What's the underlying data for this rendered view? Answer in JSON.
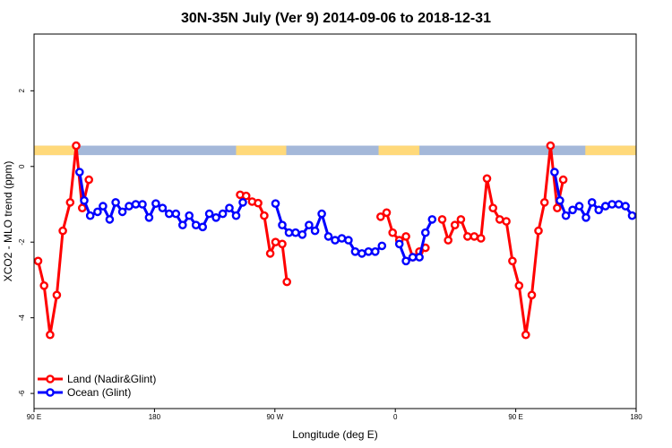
{
  "chart_data": {
    "type": "line",
    "title": "30N-35N July (Ver 9)   2014-09-06 to 2018-12-31",
    "xlabel": "Longitude (deg E)",
    "ylabel": "XCO2 - MLO trend (ppm)",
    "xlim": [
      90,
      540
    ],
    "ylim": [
      -6.4,
      3.5
    ],
    "x_ticks": [
      {
        "value": 90,
        "label": "90 E"
      },
      {
        "value": 180,
        "label": "180"
      },
      {
        "value": 270,
        "label": "90 W"
      },
      {
        "value": 360,
        "label": "0"
      },
      {
        "value": 450,
        "label": "90 E"
      },
      {
        "value": 540,
        "label": "180"
      }
    ],
    "y_ticks": [
      {
        "value": 2,
        "label": "2"
      },
      {
        "value": 0,
        "label": "0"
      },
      {
        "value": -2,
        "label": "-2"
      },
      {
        "value": -4,
        "label": "-4"
      },
      {
        "value": -6,
        "label": "-6"
      }
    ],
    "land_mask_band": {
      "y_range": [
        0.3,
        0.55
      ],
      "ocean_color": "#a4b8d9",
      "land_color": "#ffd97a",
      "land_x_ranges": [
        [
          90,
          122.5
        ],
        [
          241,
          278.5
        ],
        [
          347.5,
          378
        ],
        [
          502,
          540
        ]
      ]
    },
    "legend": {
      "position": "bottom-left"
    },
    "series": [
      {
        "name": "Land (Nadir&Glint)",
        "color": "#ff0000",
        "segments": [
          [
            [
              93,
              -2.5
            ],
            [
              97.5,
              -3.15
            ],
            [
              102,
              -4.45
            ],
            [
              107,
              -3.4
            ],
            [
              111.5,
              -1.7
            ],
            [
              117,
              -0.95
            ],
            [
              121.5,
              0.55
            ],
            [
              126,
              -1.1
            ],
            [
              131,
              -0.35
            ]
          ],
          [
            [
              244,
              -0.75
            ],
            [
              248.5,
              -0.78
            ],
            [
              253,
              -0.93
            ],
            [
              257.5,
              -0.97
            ],
            [
              262,
              -1.3
            ],
            [
              266.5,
              -2.3
            ],
            [
              270.5,
              -2.0
            ],
            [
              275.5,
              -2.05
            ],
            [
              279,
              -3.05
            ]
          ],
          [
            [
              349,
              -1.33
            ],
            [
              353.5,
              -1.22
            ],
            [
              358,
              -1.75
            ],
            [
              363,
              -1.95
            ],
            [
              368,
              -1.85
            ],
            [
              373,
              -2.4
            ],
            [
              378,
              -2.25
            ],
            [
              382.5,
              -2.15
            ]
          ],
          [
            [
              395,
              -1.4
            ],
            [
              399.5,
              -1.95
            ],
            [
              404.5,
              -1.55
            ],
            [
              409,
              -1.4
            ],
            [
              414,
              -1.85
            ],
            [
              419,
              -1.85
            ],
            [
              424,
              -1.9
            ],
            [
              428.5,
              -0.32
            ],
            [
              433,
              -1.1
            ],
            [
              438,
              -1.4
            ],
            [
              443,
              -1.45
            ],
            [
              447.5,
              -2.5
            ],
            [
              452.5,
              -3.15
            ],
            [
              457.5,
              -4.45
            ],
            [
              462,
              -3.4
            ],
            [
              467,
              -1.7
            ],
            [
              471.5,
              -0.95
            ],
            [
              476,
              0.55
            ],
            [
              481,
              -1.1
            ],
            [
              485.5,
              -0.35
            ]
          ]
        ]
      },
      {
        "name": "Ocean (Glint)",
        "color": "#0000ff",
        "segments": [
          [
            [
              124,
              -0.15
            ],
            [
              127.5,
              -0.9
            ],
            [
              132,
              -1.3
            ],
            [
              137.5,
              -1.2
            ],
            [
              141.5,
              -1.05
            ],
            [
              146.5,
              -1.4
            ],
            [
              151,
              -0.95
            ],
            [
              156,
              -1.2
            ],
            [
              161,
              -1.05
            ],
            [
              166,
              -1.0
            ],
            [
              171,
              -1.0
            ],
            [
              176,
              -1.35
            ],
            [
              181,
              -0.98
            ],
            [
              186,
              -1.1
            ],
            [
              191,
              -1.25
            ],
            [
              196,
              -1.25
            ],
            [
              201,
              -1.55
            ],
            [
              206,
              -1.3
            ],
            [
              211,
              -1.55
            ],
            [
              216,
              -1.6
            ],
            [
              221,
              -1.25
            ],
            [
              226,
              -1.35
            ],
            [
              231,
              -1.25
            ],
            [
              236,
              -1.1
            ],
            [
              241,
              -1.3
            ],
            [
              246,
              -0.95
            ]
          ],
          [
            [
              270.5,
              -0.98
            ],
            [
              275.5,
              -1.55
            ],
            [
              280.5,
              -1.75
            ],
            [
              285.5,
              -1.75
            ],
            [
              290.5,
              -1.8
            ],
            [
              295.5,
              -1.55
            ],
            [
              300,
              -1.7
            ],
            [
              305,
              -1.25
            ],
            [
              310,
              -1.85
            ],
            [
              315,
              -1.95
            ],
            [
              320,
              -1.9
            ],
            [
              325,
              -1.95
            ],
            [
              330,
              -2.25
            ],
            [
              335,
              -2.3
            ],
            [
              340,
              -2.25
            ],
            [
              345,
              -2.25
            ],
            [
              350,
              -2.1
            ]
          ],
          [
            [
              363,
              -2.05
            ],
            [
              368,
              -2.5
            ],
            [
              373,
              -2.4
            ],
            [
              378,
              -2.4
            ],
            [
              382.5,
              -1.75
            ],
            [
              387.5,
              -1.4
            ]
          ],
          [
            [
              479,
              -0.15
            ],
            [
              483,
              -0.9
            ],
            [
              487.5,
              -1.3
            ],
            [
              492.5,
              -1.15
            ],
            [
              497.5,
              -1.05
            ],
            [
              502.5,
              -1.35
            ],
            [
              507,
              -0.95
            ],
            [
              512,
              -1.15
            ],
            [
              517,
              -1.05
            ],
            [
              522,
              -1.0
            ],
            [
              527,
              -1.0
            ],
            [
              532,
              -1.05
            ],
            [
              537,
              -1.3
            ]
          ]
        ]
      }
    ]
  }
}
